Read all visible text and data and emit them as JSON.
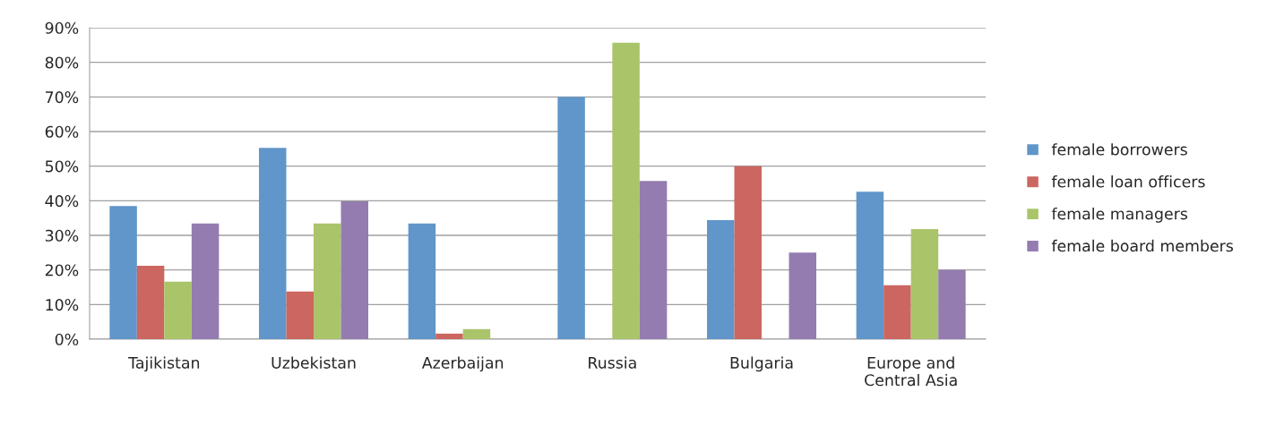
{
  "chart_data": {
    "type": "bar",
    "categories": [
      "Tajikistan",
      "Uzbekistan",
      "Azerbaijan",
      "Russia",
      "Bulgaria",
      "Europe and\nCentral Asia"
    ],
    "series": [
      {
        "name": "female borrowers",
        "color": "#6096c9",
        "values": [
          38.5,
          55.3,
          33.4,
          70.0,
          34.4,
          42.6
        ]
      },
      {
        "name": "female loan officers",
        "color": "#cc6660",
        "values": [
          21.2,
          13.8,
          1.6,
          null,
          50.0,
          15.6
        ]
      },
      {
        "name": "female managers",
        "color": "#aac46a",
        "values": [
          16.6,
          33.4,
          2.9,
          85.7,
          null,
          31.8
        ]
      },
      {
        "name": "female board members",
        "color": "#947cb0",
        "values": [
          33.4,
          39.8,
          null,
          45.7,
          25.0,
          20.0
        ]
      }
    ],
    "ylim": [
      0,
      90
    ],
    "yticks": [
      {
        "value": 0,
        "label": "0%"
      },
      {
        "value": 10,
        "label": "10%"
      },
      {
        "value": 20,
        "label": "20%"
      },
      {
        "value": 30,
        "label": "30%"
      },
      {
        "value": 40,
        "label": "40%"
      },
      {
        "value": 50,
        "label": "50%"
      },
      {
        "value": 60,
        "label": "60%"
      },
      {
        "value": 70,
        "label": "70%"
      },
      {
        "value": 80,
        "label": "80%"
      },
      {
        "value": 90,
        "label": "90%"
      }
    ],
    "grid": "y",
    "legend": "right"
  }
}
